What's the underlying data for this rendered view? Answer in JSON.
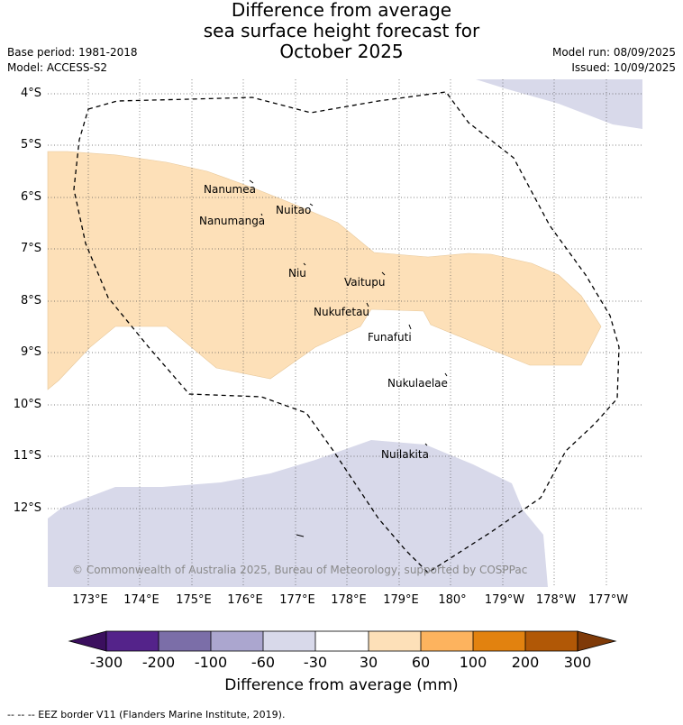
{
  "title": {
    "line1": "Difference from average",
    "line2": "sea surface height forecast for",
    "line3": "October 2025"
  },
  "meta": {
    "base_period": "Base period: 1981-2018",
    "model": "Model: ACCESS-S2",
    "model_run": "Model run: 08/09/2025",
    "issued": "Issued: 10/09/2025"
  },
  "axes": {
    "latitudes": [
      "4°S",
      "5°S",
      "6°S",
      "7°S",
      "8°S",
      "9°S",
      "10°S",
      "11°S",
      "12°S"
    ],
    "longitudes": [
      "173°E",
      "174°E",
      "175°E",
      "176°E",
      "177°E",
      "178°E",
      "179°E",
      "180°",
      "179°W",
      "178°W",
      "177°W"
    ]
  },
  "islands": {
    "nanumea": "Nanumea",
    "nuitao": "Nuitao",
    "nanumanga": "Nanumanga",
    "niu": "Niu",
    "vaitupu": "Vaitupu",
    "nukufetau": "Nukufetau",
    "funafuti": "Funafuti",
    "nukulaelae": "Nukulaelae",
    "nuilakita": "Nuilakita"
  },
  "copyright": "© Commonwealth of Australia 2025, Bureau of Meteorology, supported by COSPPac",
  "colorbar": {
    "title": "Difference from average (mm)",
    "ticks": [
      "-300",
      "-200",
      "-100",
      "-60",
      "-30",
      "30",
      "60",
      "100",
      "200",
      "300"
    ],
    "colors": {
      "under": "#3b0f5e",
      "bins": [
        "#54238a",
        "#7b6ea8",
        "#aba6cf",
        "#d8d9ea",
        "#ffffff",
        "#fde0b8",
        "#fdb35e",
        "#e2820f",
        "#b15806"
      ],
      "over": "#7f3a08"
    }
  },
  "footnote": "-- -- -- EEZ border V11 (Flanders Marine Institute, 2019)."
}
